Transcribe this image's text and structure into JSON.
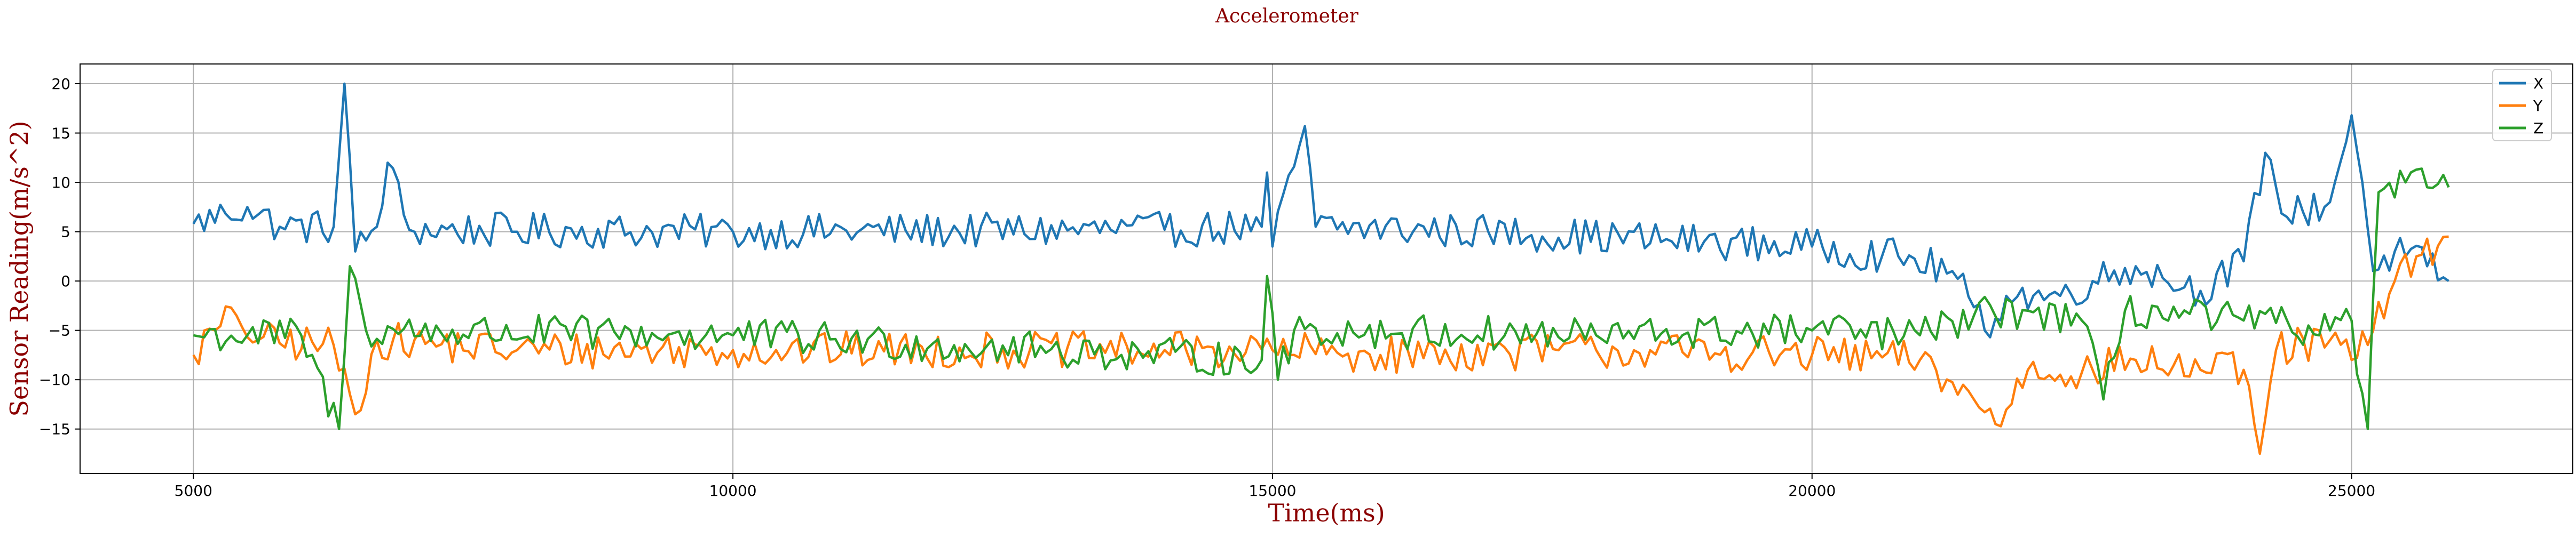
{
  "chart_data": {
    "type": "line",
    "title": "Accelerometer",
    "xlabel": "Time(ms)",
    "ylabel": "Sensor Reading(m/s^2)",
    "xlim": [
      3950,
      27050
    ],
    "ylim": [
      -19.5,
      22
    ],
    "x_ticks": [
      5000,
      10000,
      15000,
      20000,
      25000
    ],
    "x_tick_labels": [
      "5000",
      "10000",
      "15000",
      "20000",
      "25000"
    ],
    "y_ticks": [
      -15,
      -10,
      -5,
      0,
      5,
      10,
      15,
      20
    ],
    "y_tick_labels": [
      "−15",
      "−10",
      "−5",
      "0",
      "5",
      "10",
      "15",
      "20"
    ],
    "grid": true,
    "legend_position": "top-right",
    "sampling": {
      "x_start": 5000,
      "x_end": 25900,
      "x_step": 50
    },
    "series": [
      {
        "name": "X",
        "color": "#1f77b4",
        "description": "Noisy signal around +5 to +7 m/s^2 for most of the recording, with spikes near 6400 ms (20) and 15300 ms (15.7); after about 21000 ms it drops to around -2, then rises again near 24000-25000 ms with peaks near 16.8 at 25000 ms, ending near 0",
        "keypoints": [
          [
            5000,
            5.8
          ],
          [
            5300,
            6.8
          ],
          [
            5500,
            7.5
          ],
          [
            5800,
            5.5
          ],
          [
            6300,
            5.5
          ],
          [
            6400,
            20.0
          ],
          [
            6500,
            3.0
          ],
          [
            6700,
            5.5
          ],
          [
            6800,
            12.0
          ],
          [
            7000,
            5.2
          ],
          [
            10000,
            5.0
          ],
          [
            14000,
            5.2
          ],
          [
            14900,
            5.5
          ],
          [
            14950,
            11.0
          ],
          [
            15000,
            3.5
          ],
          [
            15300,
            15.7
          ],
          [
            15400,
            5.5
          ],
          [
            17000,
            5.0
          ],
          [
            19000,
            4.0
          ],
          [
            20000,
            3.5
          ],
          [
            20800,
            2.5
          ],
          [
            21300,
            1.0
          ],
          [
            21600,
            -5.0
          ],
          [
            21800,
            -1.5
          ],
          [
            22300,
            -1.5
          ],
          [
            22600,
            0.0
          ],
          [
            23000,
            1.5
          ],
          [
            23600,
            -1.0
          ],
          [
            24000,
            2.0
          ],
          [
            24200,
            13.0
          ],
          [
            24400,
            6.5
          ],
          [
            24800,
            8.0
          ],
          [
            25000,
            16.8
          ],
          [
            25100,
            10.0
          ],
          [
            25200,
            1.0
          ],
          [
            25400,
            3.0
          ],
          [
            25700,
            1.5
          ],
          [
            25900,
            0.0
          ]
        ],
        "noise_amplitude": 1.8
      },
      {
        "name": "Y",
        "color": "#ff7f0e",
        "description": "Noisy signal around -6 to -8 m/s^2 for most of the recording, dipping to about -14 near 6500 ms; after about 21000 ms it drops to about -10 with dips to -15 and -17.5 near 24200 ms, then rises to about +4.5 near 25900 ms",
        "keypoints": [
          [
            5000,
            -7.5
          ],
          [
            5200,
            -5.0
          ],
          [
            5400,
            -3.5
          ],
          [
            5600,
            -6.0
          ],
          [
            6300,
            -6.5
          ],
          [
            6500,
            -13.5
          ],
          [
            6700,
            -6.0
          ],
          [
            8000,
            -7.0
          ],
          [
            10000,
            -7.0
          ],
          [
            14000,
            -7.0
          ],
          [
            15000,
            -7.0
          ],
          [
            16000,
            -7.5
          ],
          [
            18000,
            -7.0
          ],
          [
            20000,
            -7.5
          ],
          [
            21000,
            -8.0
          ],
          [
            21500,
            -12.0
          ],
          [
            21700,
            -14.5
          ],
          [
            22000,
            -9.0
          ],
          [
            22600,
            -9.0
          ],
          [
            23000,
            -8.0
          ],
          [
            23600,
            -9.0
          ],
          [
            24000,
            -9.0
          ],
          [
            24150,
            -17.5
          ],
          [
            24300,
            -7.0
          ],
          [
            24800,
            -6.0
          ],
          [
            25000,
            -8.0
          ],
          [
            25200,
            -5.0
          ],
          [
            25400,
            0.0
          ],
          [
            25600,
            2.5
          ],
          [
            25900,
            4.5
          ]
        ],
        "noise_amplitude": 1.9
      },
      {
        "name": "Z",
        "color": "#2ca02c",
        "description": "Noisy signal around -5 to -6 m/s^2 for most of the recording, with a sharp dip to -15 and spike to +1.5 near 6400 ms, a spike near 14900 ms; after about 21000 ms it varies between -12 and 0, then near 25200 ms jumps to about +9 to +11",
        "keypoints": [
          [
            5000,
            -5.5
          ],
          [
            5500,
            -5.5
          ],
          [
            6000,
            -5.5
          ],
          [
            6350,
            -15.0
          ],
          [
            6450,
            1.5
          ],
          [
            6600,
            -5.0
          ],
          [
            10000,
            -5.5
          ],
          [
            14900,
            -8.0
          ],
          [
            14950,
            0.5
          ],
          [
            15050,
            -10.0
          ],
          [
            15200,
            -5.0
          ],
          [
            18000,
            -5.5
          ],
          [
            20000,
            -5.0
          ],
          [
            21000,
            -5.5
          ],
          [
            21500,
            -3.5
          ],
          [
            22000,
            -3.0
          ],
          [
            22500,
            -4.0
          ],
          [
            22700,
            -12.0
          ],
          [
            22900,
            -3.0
          ],
          [
            24000,
            -4.0
          ],
          [
            24800,
            -5.0
          ],
          [
            25000,
            -4.0
          ],
          [
            25150,
            -15.0
          ],
          [
            25250,
            9.0
          ],
          [
            25500,
            10.0
          ],
          [
            25700,
            9.5
          ],
          [
            25900,
            9.5
          ]
        ],
        "noise_amplitude": 1.8
      }
    ]
  }
}
